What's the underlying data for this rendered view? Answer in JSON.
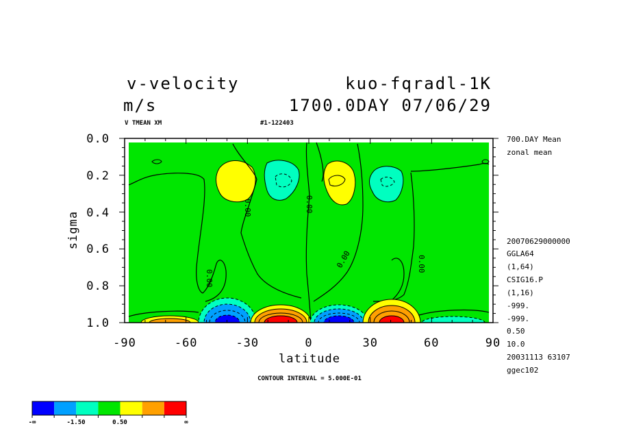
{
  "header": {
    "variable": "v-velocity",
    "run": "kuo-fqradl-1K",
    "unit": "m/s",
    "date": "1700.0DAY 07/06/29",
    "subtitle_left": "V TMEAN XM",
    "subtitle_right": "#1-122403"
  },
  "side_info": {
    "mean": "700.DAY Mean",
    "zonal": "zonal mean",
    "lines": [
      "20070629000000",
      "GGLA64",
      "(1,64)",
      "CSIG16.P",
      "(1,16)",
      "-999.",
      "-999.",
      "0.50",
      "10.0",
      "20031113  63107",
      "ggec102"
    ]
  },
  "footer": {
    "contour_interval": "CONTOUR INTERVAL = 5.000E-01"
  },
  "chart_data": {
    "type": "heatmap",
    "xlabel": "latitude",
    "ylabel": "sigma",
    "xlim": [
      -90,
      90
    ],
    "ylim": [
      1.0,
      0.0
    ],
    "x_ticks": [
      "-90",
      "-60",
      "-30",
      "0",
      "30",
      "60",
      "90"
    ],
    "y_ticks": [
      "0.0",
      "0.2",
      "0.4",
      "0.6",
      "0.8",
      "1.0"
    ],
    "contour_labels": [
      "0.00",
      "0.00",
      "0.00",
      "0.00",
      "0.00",
      "0.00"
    ],
    "features": [
      {
        "lat": -38,
        "sigma": 0.23,
        "value": 1.0,
        "sign": "positive"
      },
      {
        "lat": -15,
        "sigma": 0.22,
        "value": -1.0,
        "sign": "negative"
      },
      {
        "lat": 13,
        "sigma": 0.22,
        "value": 1.0,
        "sign": "positive"
      },
      {
        "lat": 38,
        "sigma": 0.23,
        "value": -1.0,
        "sign": "negative"
      },
      {
        "lat": -40,
        "sigma": 0.97,
        "value": -4.0,
        "sign": "negative"
      },
      {
        "lat": -13,
        "sigma": 0.97,
        "value": 4.0,
        "sign": "positive"
      },
      {
        "lat": 13,
        "sigma": 0.97,
        "value": -4.0,
        "sign": "negative"
      },
      {
        "lat": 40,
        "sigma": 0.97,
        "value": 4.0,
        "sign": "positive"
      },
      {
        "lat": -70,
        "sigma": 0.99,
        "value": 1.0,
        "sign": "positive"
      },
      {
        "lat": 65,
        "sigma": 0.99,
        "value": -1.0,
        "sign": "negative"
      }
    ],
    "colorbar": {
      "colors": [
        "#0000ff",
        "#00a0ff",
        "#00ffc0",
        "#00e600",
        "#ffff00",
        "#ffa000",
        "#ff0000"
      ],
      "labels": [
        "-∞",
        "-1.50",
        "0.50",
        "∞"
      ]
    }
  }
}
